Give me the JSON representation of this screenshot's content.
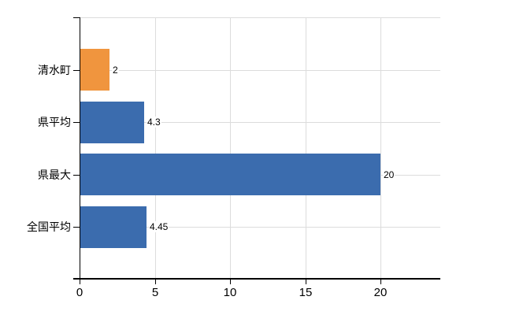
{
  "chart_data": {
    "type": "bar",
    "orientation": "horizontal",
    "title": "",
    "categories": [
      "清水町",
      "県平均",
      "県最大",
      "全国平均"
    ],
    "values": [
      2,
      4.3,
      20,
      4.45
    ],
    "value_labels": [
      "2",
      "4.3",
      "20",
      "4.45"
    ],
    "bar_colors": [
      "#f0953e",
      "#3b6cae",
      "#3b6cae",
      "#3b6cae"
    ],
    "highlight_category": "清水町",
    "xlabel": "",
    "ylabel": "",
    "xlim": [
      0,
      23.95
    ],
    "xticks": [
      0,
      5,
      10,
      15,
      20
    ],
    "xtick_labels": [
      "0",
      "5",
      "10",
      "15",
      "20"
    ],
    "grid": true,
    "legend": "none"
  },
  "colors": {
    "bar_default": "#3b6cae",
    "bar_highlight": "#f0953e",
    "grid": "#dcdcdc",
    "axis": "#000000",
    "text": "#000000",
    "background": "#ffffff"
  }
}
